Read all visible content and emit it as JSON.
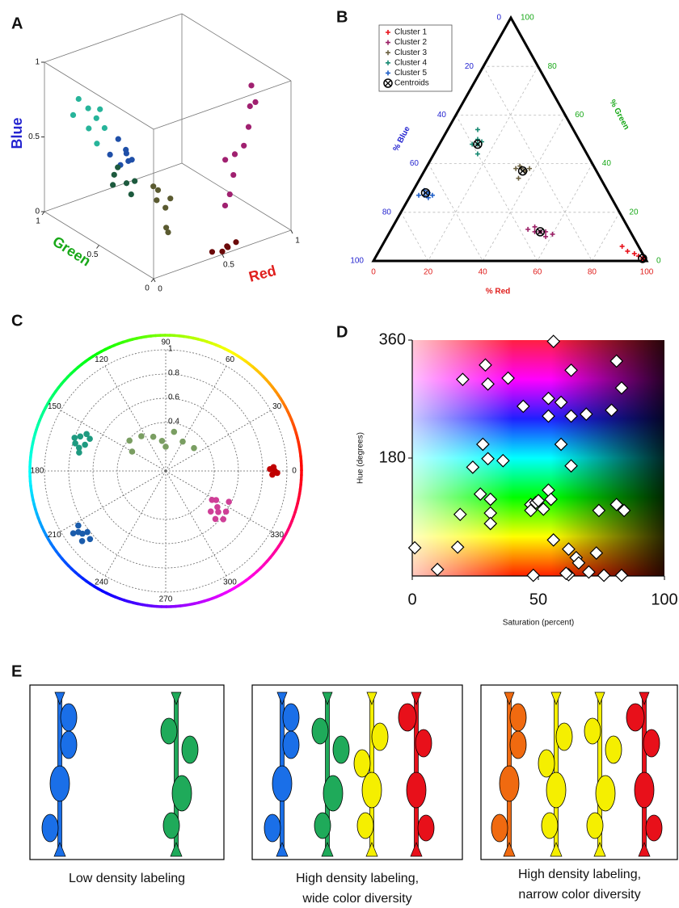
{
  "chart_data": [
    {
      "type": "scatter3d",
      "panel": "A",
      "xlabel": "Red",
      "ylabel": "Green",
      "zlabel": "Blue",
      "xlim": [
        0,
        1
      ],
      "ylim": [
        0,
        1
      ],
      "zlim": [
        0,
        1
      ],
      "xticks": [
        0,
        0.5,
        1
      ],
      "yticks": [
        0,
        0.5,
        1
      ],
      "zticks": [
        0,
        0.5,
        1
      ],
      "series": [
        {
          "color": "#27b49a",
          "x": [
            0.05,
            0.08,
            0.1,
            0.05,
            0.12,
            0.1,
            0.15,
            0.08
          ],
          "y": [
            0.75,
            0.7,
            0.65,
            0.8,
            0.6,
            0.72,
            0.68,
            0.62
          ],
          "z": [
            0.85,
            0.8,
            0.75,
            0.72,
            0.7,
            0.65,
            0.78,
            0.6
          ]
        },
        {
          "color": "#1f4fa8",
          "x": [
            0.1,
            0.12,
            0.08,
            0.15,
            0.1,
            0.14,
            0.12
          ],
          "y": [
            0.45,
            0.4,
            0.5,
            0.42,
            0.38,
            0.48,
            0.35
          ],
          "z": [
            0.7,
            0.62,
            0.58,
            0.55,
            0.66,
            0.5,
            0.6
          ]
        },
        {
          "color": "#1d5a3e",
          "x": [
            0.15,
            0.2,
            0.18,
            0.22,
            0.25,
            0.2
          ],
          "y": [
            0.55,
            0.5,
            0.6,
            0.45,
            0.52,
            0.58
          ],
          "z": [
            0.4,
            0.35,
            0.3,
            0.38,
            0.25,
            0.42
          ]
        },
        {
          "color": "#5a5a30",
          "x": [
            0.35,
            0.4,
            0.38,
            0.3,
            0.42,
            0.33,
            0.36
          ],
          "y": [
            0.4,
            0.35,
            0.45,
            0.38,
            0.42,
            0.3,
            0.32
          ],
          "z": [
            0.3,
            0.25,
            0.2,
            0.35,
            0.15,
            0.1,
            0.05
          ]
        },
        {
          "color": "#a02070",
          "x": [
            0.7,
            0.75,
            0.8,
            0.85,
            0.65,
            0.72,
            0.9,
            0.6,
            0.95,
            0.9
          ],
          "y": [
            0.15,
            0.2,
            0.18,
            0.2,
            0.12,
            0.25,
            0.25,
            0.1,
            0.3,
            0.2
          ],
          "z": [
            0.4,
            0.5,
            0.55,
            0.65,
            0.3,
            0.45,
            0.75,
            0.25,
            0.85,
            0.8
          ]
        },
        {
          "color": "#6b0a0a",
          "x": [
            0.5,
            0.55,
            0.6,
            0.45,
            0.58
          ],
          "y": [
            0,
            0.02,
            0,
            0.03,
            0.05
          ],
          "z": [
            0.02,
            0.03,
            0.05,
            0.02,
            0
          ]
        }
      ]
    },
    {
      "type": "ternary",
      "panel": "B",
      "red_label": "% Red",
      "blue_label": "% Blue",
      "green_label": "% Green",
      "lim": [
        0,
        100
      ],
      "red_ticks": [
        0,
        20,
        40,
        60,
        80,
        100
      ],
      "blue_ticks": [
        0,
        20,
        40,
        60,
        80,
        100
      ],
      "green_ticks": [
        0,
        20,
        40,
        60,
        80,
        100
      ],
      "series": [
        {
          "name": "Cluster 1",
          "color": "#e8101a",
          "marker": "plus",
          "red": [
            88,
            91,
            94,
            96,
            98
          ],
          "blue": [
            6,
            5,
            3,
            2,
            1
          ]
        },
        {
          "name": "Cluster 2",
          "color": "#9b1f66",
          "marker": "plus",
          "red": [
            50,
            53,
            55,
            57,
            60,
            52,
            58
          ],
          "blue": [
            37,
            35,
            33,
            31,
            29,
            34,
            32
          ]
        },
        {
          "name": "Cluster 3",
          "color": "#6b6040",
          "marker": "plus",
          "red": [
            33,
            35,
            37,
            36,
            34,
            38
          ],
          "blue": [
            29,
            27,
            26,
            30,
            27,
            24
          ]
        },
        {
          "name": "Cluster 4",
          "color": "#178a72",
          "marker": "plus",
          "red": [
            12,
            14,
            15,
            13,
            16,
            11
          ],
          "blue": [
            40,
            38,
            36,
            37,
            40,
            35
          ]
        },
        {
          "name": "Cluster 5",
          "color": "#1f5fc8",
          "marker": "plus",
          "red": [
            3,
            5,
            6,
            7,
            4,
            8
          ],
          "blue": [
            70,
            68,
            66,
            67,
            67,
            65
          ]
        },
        {
          "name": "Centroids",
          "color": "#000000",
          "marker": "centroid",
          "red": [
            98,
            55,
            36,
            14,
            5
          ],
          "blue": [
            1,
            33,
            27,
            38,
            67
          ]
        }
      ]
    },
    {
      "type": "polar",
      "panel": "C",
      "rlim": [
        0,
        1
      ],
      "rticks": [
        0.4,
        0.6,
        0.8,
        1
      ],
      "thetaticks": [
        0,
        30,
        60,
        90,
        120,
        150,
        180,
        210,
        240,
        270,
        300,
        330
      ],
      "series": [
        {
          "color": "#c00000",
          "theta": [
            358,
            0,
            2,
            359,
            1
          ],
          "r": [
            0.88,
            0.9,
            0.89,
            0.92,
            0.86
          ]
        },
        {
          "color": "#cf3f97",
          "theta": [
            318,
            322,
            326,
            330,
            334,
            325,
            320,
            328,
            316
          ],
          "r": [
            0.5,
            0.55,
            0.6,
            0.48,
            0.58,
            0.52,
            0.62,
            0.45,
            0.57
          ]
        },
        {
          "color": "#1b5cab",
          "theta": [
            212,
            215,
            218,
            220,
            214,
            217,
            222
          ],
          "r": [
            0.85,
            0.88,
            0.82,
            0.9,
            0.92,
            0.86,
            0.84
          ]
        },
        {
          "color": "#1e9a80",
          "theta": [
            155,
            158,
            162,
            165,
            160,
            157,
            163,
            168
          ],
          "r": [
            0.72,
            0.76,
            0.7,
            0.74,
            0.8,
            0.68,
            0.78,
            0.73
          ]
        },
        {
          "color": "#7a9e62",
          "theta": [
            97,
            140,
            39,
            78,
            110,
            60,
            125,
            90,
            150
          ],
          "r": [
            0.25,
            0.39,
            0.3,
            0.33,
            0.3,
            0.28,
            0.35,
            0.2,
            0.32
          ]
        }
      ]
    },
    {
      "type": "scatter",
      "panel": "D",
      "xlabel": "Saturation (percent)",
      "ylabel": "Hue (degrees)",
      "xlim": [
        0,
        100
      ],
      "ylim": [
        0,
        360
      ],
      "xticks": [
        0,
        50,
        100
      ],
      "yticks": [
        180,
        360
      ],
      "marker": "diamond",
      "x": [
        56,
        29,
        38,
        20,
        63,
        81,
        30,
        83,
        44,
        54,
        59,
        63,
        54,
        79,
        69,
        28,
        24,
        30,
        36,
        59,
        63,
        27,
        19,
        31,
        31,
        31,
        47,
        49,
        47,
        50,
        54,
        55,
        52,
        74,
        81,
        84,
        73,
        1,
        10,
        18,
        56,
        62,
        65,
        66,
        70,
        62,
        48,
        76,
        83,
        61
      ],
      "y": [
        358,
        322,
        302,
        300,
        314,
        328,
        293,
        287,
        259,
        271,
        265,
        244,
        244,
        253,
        247,
        201,
        166,
        179,
        176,
        201,
        168,
        125,
        94,
        117,
        96,
        80,
        109,
        112,
        100,
        115,
        131,
        117,
        102,
        100,
        109,
        100,
        35,
        43,
        10,
        44,
        55,
        41,
        28,
        20,
        6,
        2,
        1,
        1,
        1,
        4
      ]
    }
  ],
  "diagram": {
    "label": "E",
    "captions": [
      [
        "Low density labeling"
      ],
      [
        "High density labeling,",
        "wide color diversity"
      ],
      [
        "High density labeling,",
        "narrow color diversity"
      ]
    ]
  }
}
